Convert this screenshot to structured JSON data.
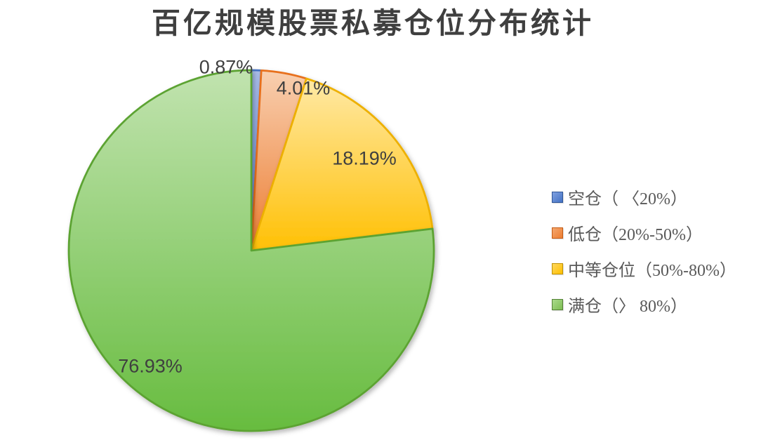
{
  "chart_data": {
    "type": "pie",
    "title": "百亿规模股票私募仓位分布统计",
    "legend_position": "right",
    "start_angle_deg": 0,
    "direction": "clockwise",
    "unit": "%",
    "title_color": "#3f3f3f",
    "label_color": "#3f3f3f",
    "legend_text_color": "#595959",
    "background": "#ffffff",
    "slices": [
      {
        "name": "空仓（ 〈20%）",
        "value": 0.87,
        "label": "0.87%",
        "color": "#4472C4",
        "border": "#4472C4",
        "gradient": {
          "top": "#A9BDE9",
          "bottom": "#6286D2"
        },
        "swatch": {
          "top": "#7FA0E0",
          "bottom": "#4472C4",
          "border": "#2E5597"
        }
      },
      {
        "name": "低仓（20%-50%）",
        "value": 4.01,
        "label": "4.01%",
        "color": "#ED7D31",
        "border": "#E8701F",
        "gradient": {
          "top": "#F8CFB0",
          "bottom": "#ED7D31"
        },
        "swatch": {
          "top": "#F4A870",
          "bottom": "#ED7D31",
          "border": "#C55A11"
        }
      },
      {
        "name": "中等仓位（50%-80%）",
        "value": 18.19,
        "label": "18.19%",
        "color": "#FFC000",
        "border": "#EDB000",
        "gradient": {
          "top": "#FFE9A6",
          "bottom": "#FFC004"
        },
        "swatch": {
          "top": "#FFD75E",
          "bottom": "#FFC000",
          "border": "#BF9000"
        }
      },
      {
        "name": "满仓（〉 80%）",
        "value": 76.93,
        "label": "76.93%",
        "color": "#70AD47",
        "border": "#5CA332",
        "gradient": {
          "top": "#C1E3AF",
          "bottom": "#67BC3F"
        },
        "swatch": {
          "top": "#AADA8C",
          "bottom": "#7DBE53",
          "border": "#538135"
        }
      }
    ]
  }
}
